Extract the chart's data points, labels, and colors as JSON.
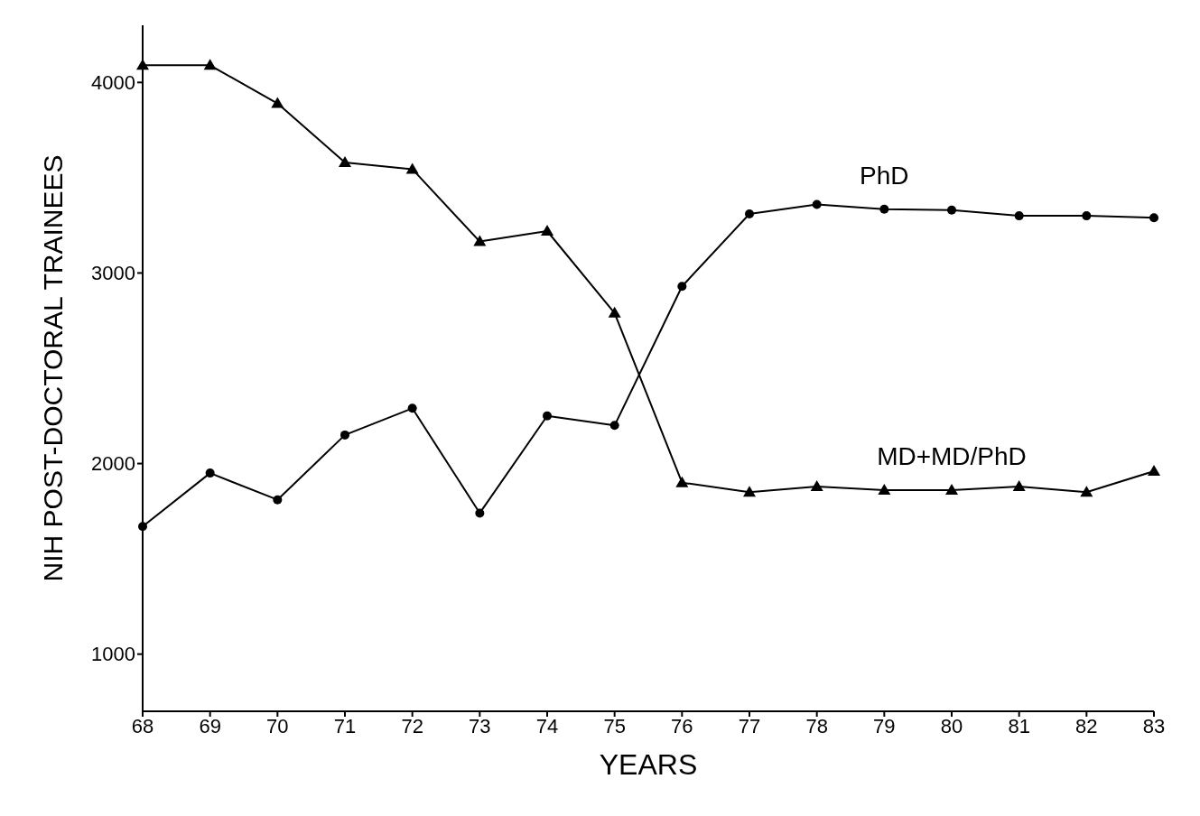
{
  "chart_data": {
    "type": "line",
    "xlabel": "YEARS",
    "ylabel": "NIH POST-DOCTORAL TRAINEES",
    "categories": [
      "68",
      "69",
      "70",
      "71",
      "72",
      "73",
      "74",
      "75",
      "76",
      "77",
      "78",
      "79",
      "80",
      "81",
      "82",
      "83"
    ],
    "series": [
      {
        "name": "PhD",
        "color": "#000000",
        "marker": "circle",
        "values": [
          1670,
          1950,
          1810,
          2150,
          2290,
          1740,
          2250,
          2200,
          2930,
          3310,
          3360,
          3335,
          3330,
          3300,
          3300,
          3290
        ]
      },
      {
        "name": "MD+MD/PhD",
        "color": "#000000",
        "marker": "triangle",
        "values": [
          4090,
          4090,
          3890,
          3580,
          3545,
          3165,
          3220,
          2790,
          1900,
          1850,
          1880,
          1860,
          1860,
          1880,
          1850,
          1960
        ]
      }
    ],
    "ylim": [
      700,
      4300
    ],
    "yticks": [
      1000,
      2000,
      3000,
      4000
    ],
    "grid": false,
    "legend": false,
    "line_style": "solid"
  }
}
